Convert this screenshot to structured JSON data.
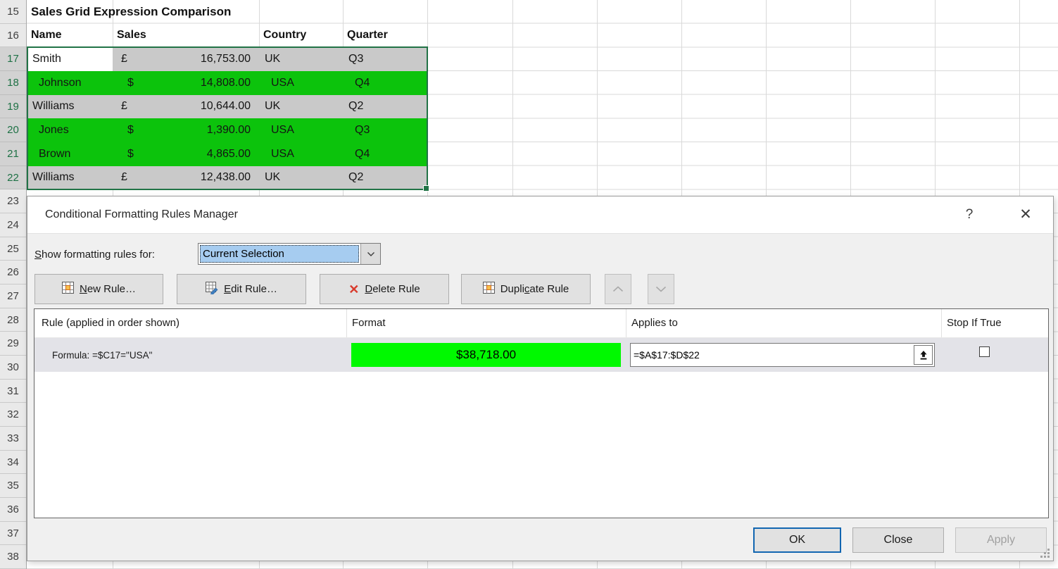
{
  "sheet": {
    "title_row": {
      "number": 15,
      "title": "Sales Grid Expression Comparison"
    },
    "header_row": {
      "number": 16,
      "cells": [
        "Name",
        "Sales",
        "Country",
        "Quarter"
      ]
    },
    "data_rows": [
      {
        "number": 17,
        "name": "Smith",
        "currency": "£",
        "amount": "16,753.00",
        "country": "UK",
        "quarter": "Q3",
        "highlight": "gray",
        "active": true
      },
      {
        "number": 18,
        "name": "Johnson",
        "currency": "$",
        "amount": "14,808.00",
        "country": "USA",
        "quarter": "Q4",
        "highlight": "green",
        "active": false
      },
      {
        "number": 19,
        "name": "Williams",
        "currency": "£",
        "amount": "10,644.00",
        "country": "UK",
        "quarter": "Q2",
        "highlight": "gray",
        "active": false
      },
      {
        "number": 20,
        "name": "Jones",
        "currency": "$",
        "amount": "1,390.00",
        "country": "USA",
        "quarter": "Q3",
        "highlight": "green",
        "active": false
      },
      {
        "number": 21,
        "name": "Brown",
        "currency": "$",
        "amount": "4,865.00",
        "country": "USA",
        "quarter": "Q4",
        "highlight": "green",
        "active": false
      },
      {
        "number": 22,
        "name": "Williams",
        "currency": "£",
        "amount": "12,438.00",
        "country": "UK",
        "quarter": "Q2",
        "highlight": "gray",
        "active": false
      }
    ],
    "row_numbers": [
      15,
      16,
      17,
      18,
      19,
      20,
      21,
      22,
      23,
      24,
      25,
      26,
      27,
      28,
      29,
      30,
      31,
      32,
      33,
      34,
      35,
      36,
      37,
      38
    ],
    "selected_rows": [
      17,
      18,
      19,
      20,
      21,
      22
    ],
    "colors": {
      "highlight_green": "#0cc30c",
      "selection_gray": "#c9c9c9",
      "selection_border_green": "#217346"
    }
  },
  "dialog": {
    "title": "Conditional Formatting Rules Manager",
    "help_glyph": "?",
    "close_glyph": "✕",
    "show_rules": {
      "label": "Show formatting rules for:",
      "mnemonic": "S",
      "value": "Current Selection"
    },
    "toolbar": {
      "new_rule": {
        "label": "New Rule…",
        "mnemonic": "N"
      },
      "edit_rule": {
        "label": "Edit Rule…",
        "mnemonic": "E"
      },
      "delete_rule": {
        "label": "Delete Rule",
        "mnemonic": "D"
      },
      "duplicate_rule": {
        "label": "Duplicate Rule",
        "mnemonic": "c"
      },
      "move_up_disabled": true,
      "move_down_disabled": true
    },
    "list_columns": [
      "Rule (applied in order shown)",
      "Format",
      "Applies to",
      "Stop If True"
    ],
    "rule": {
      "description": "Formula: =$C17=\"USA\"",
      "format_preview": "$38,718.00",
      "format_fill": "#00f900",
      "applies_to": "=$A$17:$D$22",
      "stop_if_true": false
    },
    "footer": {
      "ok": "OK",
      "close": "Close",
      "apply": "Apply",
      "apply_disabled": true
    }
  }
}
